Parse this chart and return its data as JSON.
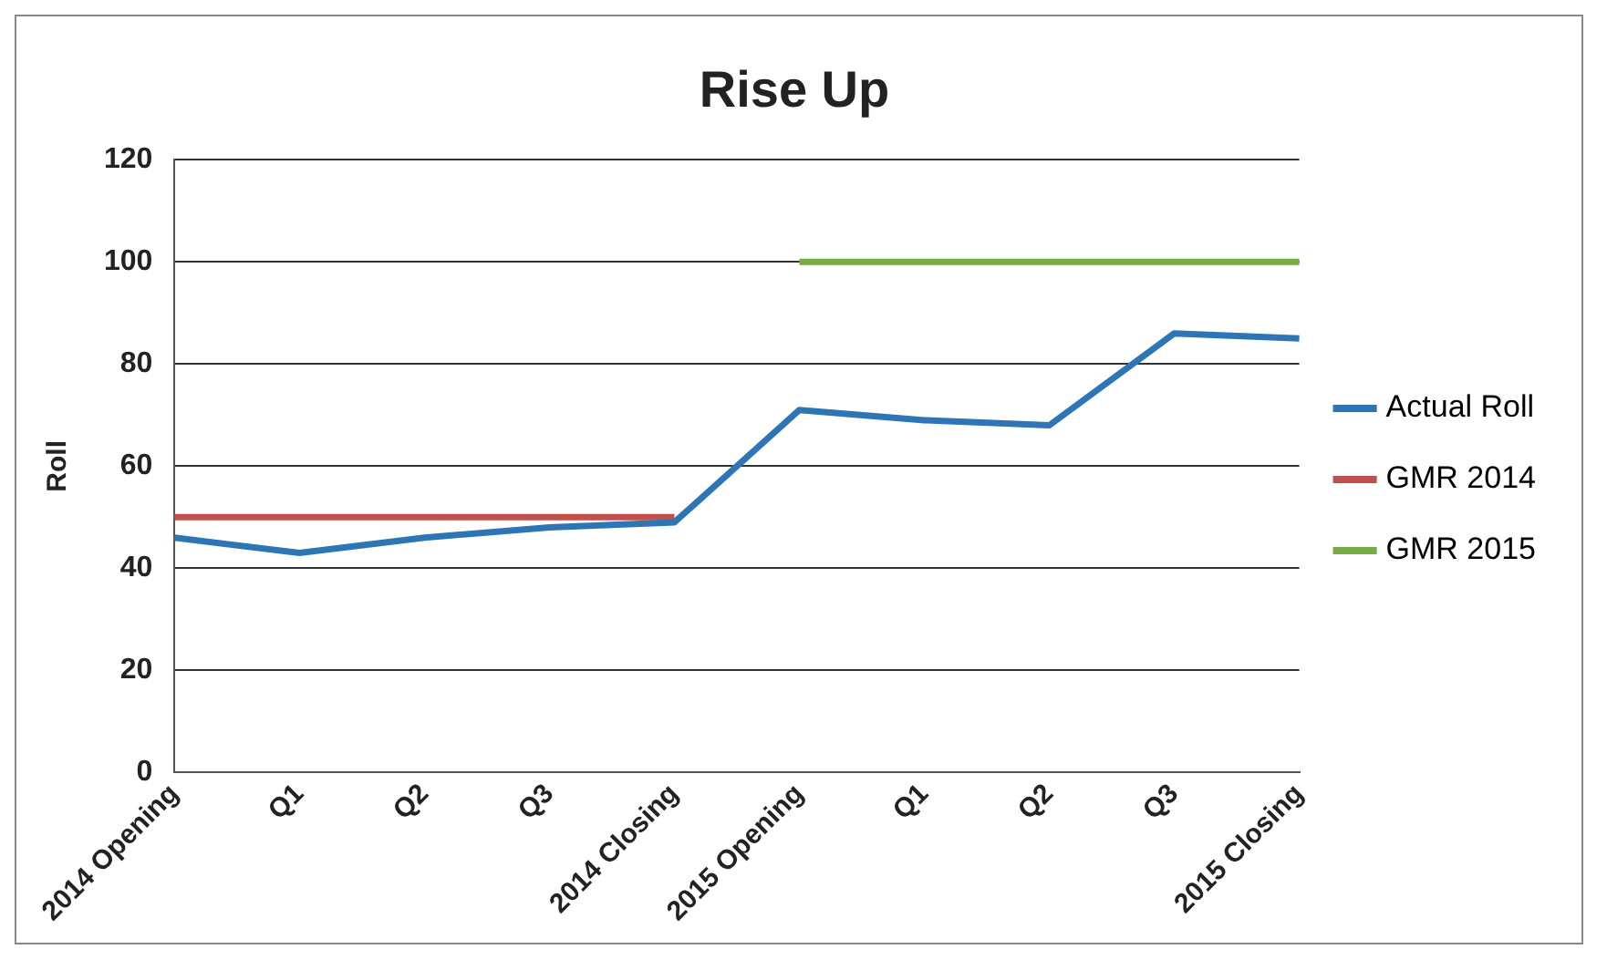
{
  "chart_data": {
    "type": "line",
    "title": "Rise Up",
    "ylabel": "Roll",
    "categories": [
      "2014 Opening",
      "Q1",
      "Q2",
      "Q3",
      "2014 Closing",
      "2015 Opening",
      "Q1",
      "Q2",
      "Q3",
      "2015 Closing"
    ],
    "series": [
      {
        "name": "Actual Roll",
        "color": "#2e75b6",
        "values": [
          46,
          43,
          46,
          48,
          49,
          71,
          69,
          68,
          86,
          85
        ]
      },
      {
        "name": "GMR 2014",
        "color": "#c0504d",
        "values": [
          50,
          50,
          50,
          50,
          50,
          null,
          null,
          null,
          null,
          null
        ]
      },
      {
        "name": "GMR 2015",
        "color": "#77ab43",
        "values": [
          null,
          null,
          null,
          null,
          null,
          100,
          100,
          100,
          100,
          100
        ]
      }
    ],
    "ylim": [
      0,
      120
    ],
    "yticks": [
      0,
      20,
      40,
      60,
      80,
      100,
      120
    ],
    "grid": "y",
    "legend": "right",
    "marker": "none"
  }
}
